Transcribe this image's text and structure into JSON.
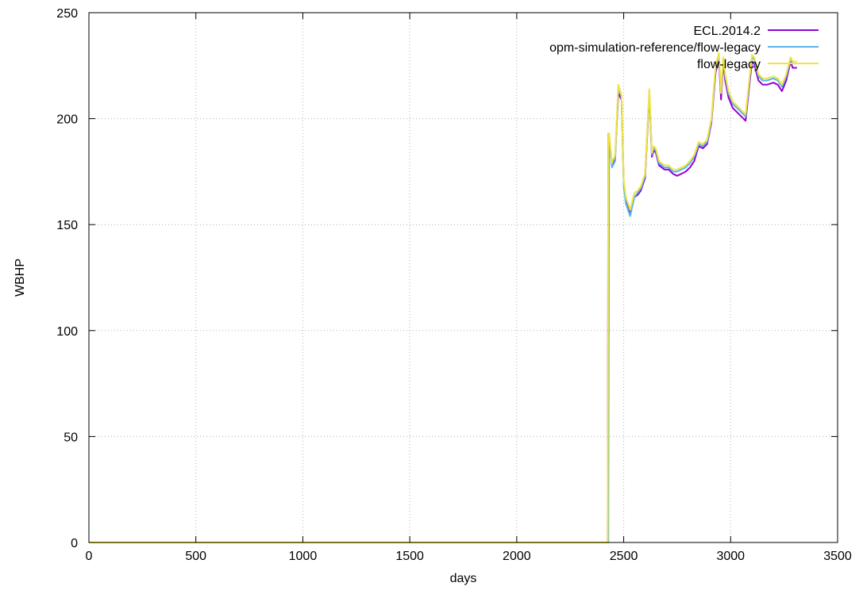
{
  "chart_data": {
    "type": "line",
    "xlabel": "days",
    "ylabel": "WBHP",
    "xlim": [
      0,
      3500
    ],
    "ylim": [
      0,
      250
    ],
    "xticks": [
      0,
      500,
      1000,
      1500,
      2000,
      2500,
      3000,
      3500
    ],
    "yticks": [
      0,
      50,
      100,
      150,
      200,
      250
    ],
    "grid": true,
    "legend_position": "top-right",
    "series": [
      {
        "name": "ECL.2014.2",
        "color": "#9400d3",
        "x": [
          0,
          2425,
          2428,
          2432,
          2445,
          2460,
          2475,
          2490,
          2500,
          2510,
          2530,
          2550,
          2565,
          2580,
          2600,
          2620,
          2632,
          2640,
          2650,
          2665,
          2690,
          2710,
          2730,
          2750,
          2770,
          2790,
          2810,
          2830,
          2850,
          2870,
          2890,
          2910,
          2930,
          2945,
          2955,
          2965,
          2975,
          2990,
          3010,
          3040,
          3070,
          3090,
          3100,
          3110,
          3130,
          3150,
          3170,
          3200,
          3220,
          3240,
          3260,
          3280,
          3290,
          3310
        ],
        "y": [
          0,
          0,
          193,
          192,
          178,
          182,
          212,
          209,
          170,
          162,
          155,
          163,
          164,
          166,
          172,
          212,
          182,
          185,
          184,
          178,
          176,
          176,
          174,
          173,
          174,
          175,
          177,
          180,
          187,
          186,
          188,
          198,
          222,
          228,
          209,
          226,
          218,
          210,
          205,
          202,
          199,
          218,
          227,
          226,
          218,
          216,
          216,
          217,
          216,
          213,
          218,
          227,
          224,
          224
        ]
      },
      {
        "name": "opm-simulation-reference/flow-legacy",
        "color": "#56b4e9",
        "x": [
          0,
          2425,
          2428,
          2432,
          2445,
          2460,
          2475,
          2490,
          2500,
          2510,
          2530,
          2550,
          2565,
          2580,
          2600,
          2620,
          2632,
          2640,
          2650,
          2665,
          2690,
          2710,
          2730,
          2750,
          2770,
          2790,
          2810,
          2830,
          2850,
          2870,
          2890,
          2910,
          2930,
          2945,
          2955,
          2965,
          2975,
          2990,
          3010,
          3040,
          3070,
          3090,
          3100,
          3110,
          3130,
          3150,
          3170,
          3200,
          3220,
          3240,
          3260,
          3280,
          3290,
          3310
        ],
        "y": [
          0,
          0,
          0,
          192,
          177,
          180,
          215,
          210,
          168,
          160,
          154,
          163,
          165,
          167,
          173,
          213,
          183,
          186,
          185,
          179,
          177,
          177,
          175,
          175,
          176,
          177,
          179,
          182,
          188,
          187,
          189,
          199,
          224,
          230,
          212,
          228,
          220,
          212,
          207,
          204,
          201,
          220,
          229,
          228,
          220,
          218,
          218,
          219,
          218,
          215,
          220,
          228,
          226,
          226
        ]
      },
      {
        "name": "flow-legacy",
        "color": "#f0e442",
        "x": [
          0,
          2425,
          2428,
          2432,
          2445,
          2460,
          2475,
          2490,
          2500,
          2510,
          2530,
          2550,
          2565,
          2580,
          2600,
          2620,
          2632,
          2640,
          2650,
          2665,
          2690,
          2710,
          2730,
          2750,
          2770,
          2790,
          2810,
          2830,
          2850,
          2870,
          2890,
          2910,
          2930,
          2945,
          2955,
          2965,
          2975,
          2990,
          3010,
          3040,
          3070,
          3090,
          3100,
          3110,
          3130,
          3150,
          3170,
          3200,
          3220,
          3240,
          3260,
          3280,
          3290,
          3310
        ],
        "y": [
          0,
          0,
          193,
          193,
          179,
          183,
          216,
          211,
          171,
          163,
          157,
          165,
          166,
          168,
          174,
          214,
          184,
          187,
          186,
          180,
          178,
          178,
          176,
          176,
          177,
          178,
          180,
          183,
          189,
          188,
          190,
          200,
          225,
          231,
          212,
          229,
          221,
          213,
          208,
          205,
          202,
          221,
          230,
          229,
          221,
          219,
          219,
          220,
          219,
          216,
          221,
          229,
          227,
          227
        ]
      }
    ]
  }
}
